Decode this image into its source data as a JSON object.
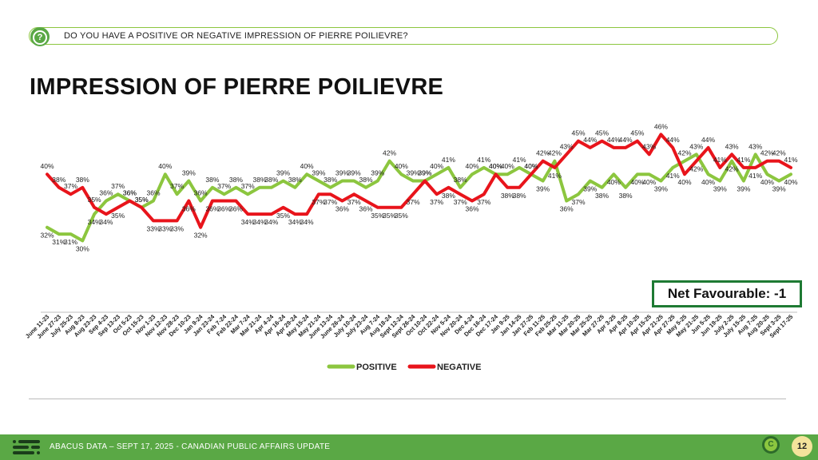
{
  "question": {
    "text": "DO YOU HAVE A POSITIVE OR NEGATIVE IMPRESSION OF PIERRE POILIEVRE?",
    "icon": "help-icon"
  },
  "page_title": "IMPRESSION OF PIERRE POILIEVRE",
  "net_favourable": "Net Favourable: -1",
  "footer": {
    "text": "ABACUS DATA – SEPT 17, 2025 - CANADIAN PUBLIC AFFAIRS UPDATE",
    "page_number": "12",
    "badge_icon": "ca-logo-icon"
  },
  "chart_data": {
    "type": "line",
    "x": [
      "June 11-23",
      "June 27-23",
      "July 25-23",
      "Aug 8-23",
      "Aug 23-23",
      "Sep 4-23",
      "Sep 13-23",
      "Oct 5-23",
      "Oct 15-23",
      "Nov 1-23",
      "Nov 12-23",
      "Nov 28-23",
      "Dec 10-23",
      "Jan 9-24",
      "Jan 23-24",
      "Feb 7-24",
      "Feb 22-24",
      "Mar 7-24",
      "Mar 21-24",
      "Apr 4-24",
      "Apr 16-24",
      "Apr 29-24",
      "May 15-24",
      "May 21-24",
      "June 13-24",
      "June 26-24",
      "July 10-24",
      "July 23-24",
      "Aug 7-24",
      "Aug 18-24",
      "Sept 12-24",
      "Sept 26-24",
      "Oct 10-24",
      "Oct 22-24",
      "Nov 5-24",
      "Nov 20-24",
      "Dec 4-24",
      "Dec 16-24",
      "Dec 17-24",
      "Jan 9-25",
      "Jan 14-25",
      "Jan 27-25",
      "Feb 11-25",
      "Feb 25-25",
      "Mar 11-25",
      "Mar 20-25",
      "Mar 25-25",
      "Mar 27-25",
      "Apr 3-25",
      "Apr 8-25",
      "Apr 10-25",
      "Apr 15-25",
      "Apr 21-25",
      "Apr 27-25",
      "May 5-25",
      "May 21-25",
      "Jun 5-25",
      "Jun 19-25",
      "July 2-25",
      "July 15-25",
      "Aug 7-25",
      "Aug 20-25",
      "Sept 3-25",
      "Sept 17-25"
    ],
    "series": [
      {
        "name": "POSITIVE",
        "color": "#8cc63f",
        "values": [
          32,
          31,
          31,
          30,
          34,
          36,
          37,
          36,
          35,
          36,
          40,
          37,
          39,
          36,
          38,
          37,
          38,
          37,
          38,
          38,
          39,
          38,
          40,
          39,
          38,
          39,
          39,
          38,
          39,
          42,
          40,
          39,
          39,
          40,
          41,
          38,
          40,
          41,
          40,
          40,
          41,
          40,
          39,
          42,
          36,
          37,
          39,
          38,
          40,
          38,
          40,
          40,
          39,
          41,
          42,
          43,
          40,
          39,
          42,
          39,
          43,
          40,
          39,
          40
        ]
      },
      {
        "name": "NEGATIVE",
        "color": "#e8141b",
        "values": [
          40,
          38,
          37,
          38,
          35,
          34,
          35,
          36,
          35,
          33,
          33,
          33,
          36,
          32,
          36,
          36,
          36,
          34,
          34,
          34,
          35,
          34,
          34,
          37,
          37,
          36,
          37,
          36,
          35,
          35,
          35,
          37,
          39,
          37,
          38,
          37,
          36,
          37,
          40,
          38,
          38,
          40,
          42,
          41,
          43,
          45,
          44,
          45,
          44,
          44,
          45,
          43,
          46,
          44,
          40,
          42,
          44,
          41,
          43,
          41,
          41,
          42,
          42,
          41
        ]
      }
    ],
    "ylim": [
      28,
      47
    ],
    "legend_position": "bottom-center"
  }
}
